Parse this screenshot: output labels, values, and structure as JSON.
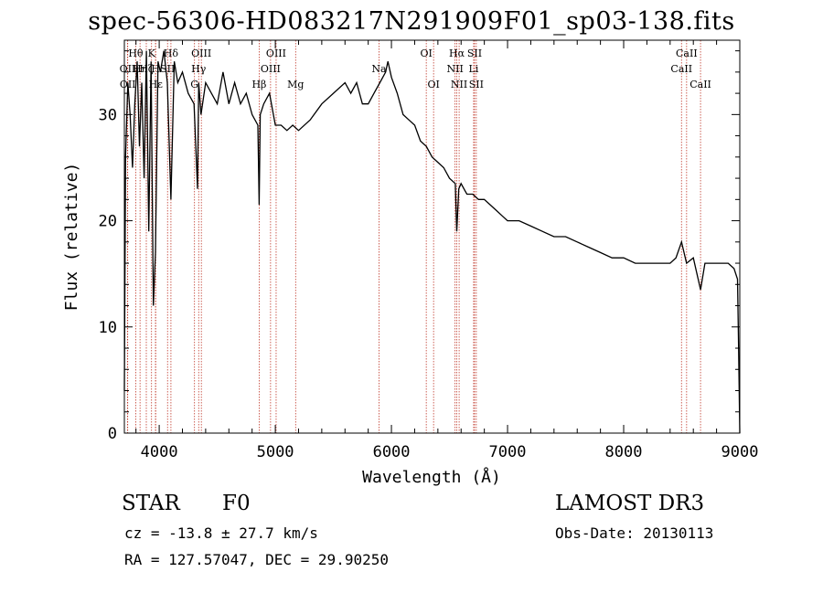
{
  "chart_data": {
    "type": "line",
    "title": "spec-56306-HD083217N291909F01_sp03-138.fits",
    "xlabel": "Wavelength (Å)",
    "ylabel": "Flux (relative)",
    "xlim": [
      3700,
      9000
    ],
    "ylim": [
      0,
      37
    ],
    "xticks": [
      4000,
      5000,
      6000,
      7000,
      8000,
      9000
    ],
    "yticks": [
      0,
      10,
      20,
      30
    ],
    "series": [
      {
        "name": "spectrum",
        "x": [
          3700,
          3710,
          3730,
          3750,
          3770,
          3790,
          3810,
          3830,
          3850,
          3870,
          3890,
          3910,
          3930,
          3950,
          3968,
          3990,
          4010,
          4040,
          4070,
          4101,
          4130,
          4160,
          4200,
          4250,
          4300,
          4330,
          4340,
          4360,
          4400,
          4450,
          4500,
          4550,
          4600,
          4650,
          4700,
          4750,
          4800,
          4850,
          4861,
          4870,
          4900,
          4950,
          5000,
          5050,
          5100,
          5150,
          5200,
          5300,
          5400,
          5500,
          5600,
          5650,
          5700,
          5750,
          5800,
          5850,
          5900,
          5950,
          5970,
          6000,
          6050,
          6100,
          6150,
          6200,
          6250,
          6300,
          6350,
          6400,
          6450,
          6500,
          6550,
          6563,
          6580,
          6600,
          6650,
          6700,
          6750,
          6800,
          6850,
          6900,
          6950,
          7000,
          7100,
          7200,
          7300,
          7400,
          7500,
          7600,
          7700,
          7800,
          7900,
          8000,
          8100,
          8200,
          8300,
          8400,
          8450,
          8498,
          8542,
          8600,
          8662,
          8700,
          8800,
          8900,
          8950,
          8980,
          8990,
          9000
        ],
        "values": [
          4,
          26,
          33,
          30,
          25,
          31,
          35,
          27,
          33,
          24,
          36,
          19,
          35,
          12,
          17,
          35,
          34,
          36,
          33,
          22,
          35,
          33,
          34,
          32,
          31,
          23,
          33,
          30,
          33,
          32,
          31,
          34,
          31,
          33,
          31,
          32,
          30,
          29,
          21.5,
          30,
          31,
          32,
          29,
          29,
          28.5,
          29,
          28.5,
          29.5,
          31,
          32,
          33,
          32,
          33,
          31,
          31,
          32,
          33,
          34,
          35,
          33.5,
          32,
          30,
          29.5,
          29,
          27.5,
          27,
          26,
          25.5,
          25,
          24,
          23.5,
          19,
          23,
          23.5,
          22.5,
          22.5,
          22,
          22,
          21.5,
          21,
          20.5,
          20,
          20,
          19.5,
          19,
          18.5,
          18.5,
          18,
          17.5,
          17,
          16.5,
          16.5,
          16,
          16,
          16,
          16,
          16.5,
          18,
          16,
          16.5,
          13.5,
          16,
          16,
          16,
          15.5,
          14.5,
          8,
          0
        ]
      }
    ],
    "lines": [
      {
        "name": "Hθ",
        "wl": 3798,
        "row": 1
      },
      {
        "name": "OII",
        "wl": 3727,
        "row": 2
      },
      {
        "name": "OII",
        "wl": 3729,
        "row": 3
      },
      {
        "name": "Hη",
        "wl": 3835,
        "row": 2
      },
      {
        "name": "Hζ",
        "wl": 3889,
        "row": 2
      },
      {
        "name": "K",
        "wl": 3934,
        "row": 1
      },
      {
        "name": "H",
        "wl": 3968,
        "row": 2
      },
      {
        "name": "Hε",
        "wl": 3970,
        "row": 3
      },
      {
        "name": "Hδ",
        "wl": 4101,
        "row": 1
      },
      {
        "name": "SII",
        "wl": 4072,
        "row": 2
      },
      {
        "name": "OIII",
        "wl": 4363,
        "row": 1
      },
      {
        "name": "Hγ",
        "wl": 4340,
        "row": 2
      },
      {
        "name": "G",
        "wl": 4304,
        "row": 3
      },
      {
        "name": "OIII",
        "wl": 5007,
        "row": 1
      },
      {
        "name": "OIII",
        "wl": 4959,
        "row": 2
      },
      {
        "name": "Hβ",
        "wl": 4861,
        "row": 3
      },
      {
        "name": "Mg",
        "wl": 5175,
        "row": 3
      },
      {
        "name": "Na",
        "wl": 5893,
        "row": 2
      },
      {
        "name": "OI",
        "wl": 6300,
        "row": 1
      },
      {
        "name": "OI",
        "wl": 6363,
        "row": 3
      },
      {
        "name": "Hα",
        "wl": 6563,
        "row": 1
      },
      {
        "name": "NII",
        "wl": 6548,
        "row": 2
      },
      {
        "name": "NII",
        "wl": 6583,
        "row": 3
      },
      {
        "name": "SII",
        "wl": 6716,
        "row": 1
      },
      {
        "name": "Li",
        "wl": 6708,
        "row": 2
      },
      {
        "name": "SII",
        "wl": 6731,
        "row": 3
      },
      {
        "name": "CaII",
        "wl": 8542,
        "row": 1
      },
      {
        "name": "CaII",
        "wl": 8498,
        "row": 2
      },
      {
        "name": "CaII",
        "wl": 8662,
        "row": 3
      }
    ]
  },
  "info": {
    "object_class": "STAR",
    "subclass": "F0",
    "survey": "LAMOST DR3",
    "cz": "cz = -13.8 ± 27.7 km/s",
    "obs_date": "Obs-Date: 20130113",
    "radec": "RA = 127.57047, DEC =  29.90250"
  }
}
